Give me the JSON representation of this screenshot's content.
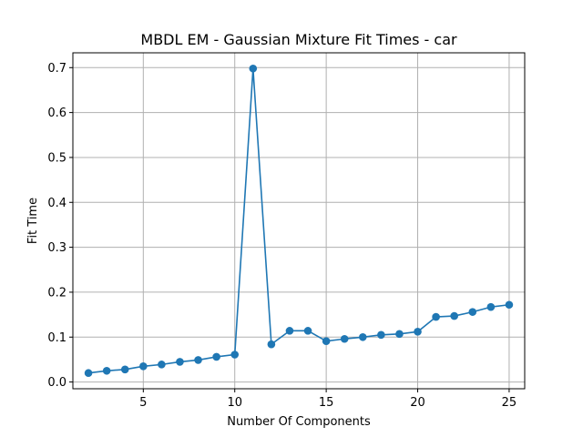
{
  "chart_data": {
    "type": "line",
    "title": "MBDL EM - Gaussian Mixture Fit Times - car",
    "xlabel": "Number Of Components",
    "ylabel": "Fit Time",
    "xlim": [
      1.15,
      25.85
    ],
    "ylim": [
      -0.015,
      0.733
    ],
    "xticks": [
      5,
      10,
      15,
      20,
      25
    ],
    "yticks": [
      0.0,
      0.1,
      0.2,
      0.3,
      0.4,
      0.5,
      0.6,
      0.7
    ],
    "grid": true,
    "series": [
      {
        "color": "#1f77b4",
        "marker": "circle",
        "x": [
          2,
          3,
          4,
          5,
          6,
          7,
          8,
          9,
          10,
          11,
          12,
          13,
          14,
          15,
          16,
          17,
          18,
          19,
          20,
          21,
          22,
          23,
          24,
          25
        ],
        "y": [
          0.02,
          0.025,
          0.028,
          0.035,
          0.039,
          0.045,
          0.049,
          0.056,
          0.061,
          0.698,
          0.084,
          0.114,
          0.114,
          0.091,
          0.096,
          0.1,
          0.105,
          0.107,
          0.112,
          0.145,
          0.147,
          0.156,
          0.167,
          0.172
        ]
      }
    ]
  }
}
